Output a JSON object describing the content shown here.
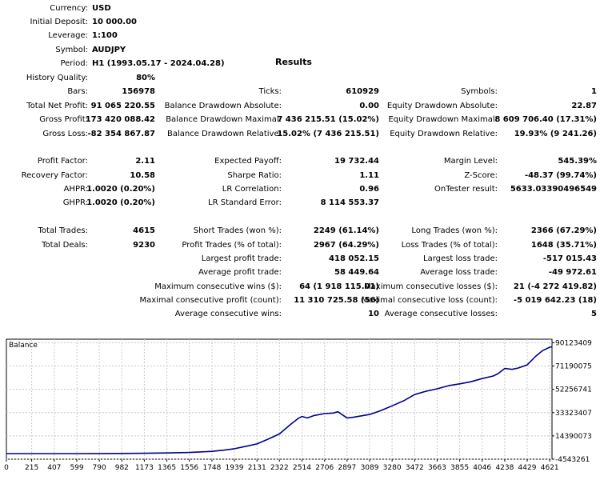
{
  "header": {
    "title": "Results",
    "fields": [
      {
        "label": "Currency:",
        "value": "USD"
      },
      {
        "label": "Initial Deposit:",
        "value": "10 000.00"
      },
      {
        "label": "Leverage:",
        "value": "1:100"
      },
      {
        "label": "Symbol:",
        "value": "AUDJPY"
      },
      {
        "label": "Period:",
        "value": "H1 (1993.05.17 - 2024.04.28)"
      }
    ]
  },
  "rows": [
    {
      "cells": [
        {
          "label": "History Quality:",
          "value": "80%"
        }
      ]
    },
    {
      "cells": [
        {
          "label": "Bars:",
          "value": "156978"
        },
        {
          "label": "Ticks:",
          "value": "610929"
        },
        {
          "label": "Symbols:",
          "value": "1"
        }
      ]
    },
    {
      "cells": [
        {
          "label": "Total Net Profit:",
          "value": "91 065 220.55"
        },
        {
          "label": "Balance Drawdown Absolute:",
          "value": "0.00"
        },
        {
          "label": "Equity Drawdown Absolute:",
          "value": "22.87"
        }
      ]
    },
    {
      "cells": [
        {
          "label": "Gross Profit:",
          "value": "173 420 088.42"
        },
        {
          "label": "Balance Drawdown Maximal:",
          "value": "7 436 215.51 (15.02%)"
        },
        {
          "label": "Equity Drawdown Maximal:",
          "value": "8 609 706.40 (17.31%)"
        }
      ]
    },
    {
      "cells": [
        {
          "label": "Gross Loss:",
          "value": "-82 354 867.87"
        },
        {
          "label": "Balance Drawdown Relative:",
          "value": "15.02% (7 436 215.51)"
        },
        {
          "label": "Equity Drawdown Relative:",
          "value": "19.93% (9 241.26)"
        }
      ]
    },
    {
      "cells": []
    },
    {
      "cells": [
        {
          "label": "Profit Factor:",
          "value": "2.11"
        },
        {
          "label": "Expected Payoff:",
          "value": "19 732.44"
        },
        {
          "label": "Margin Level:",
          "value": "545.39%"
        }
      ]
    },
    {
      "cells": [
        {
          "label": "Recovery Factor:",
          "value": "10.58"
        },
        {
          "label": "Sharpe Ratio:",
          "value": "1.11"
        },
        {
          "label": "Z-Score:",
          "value": "-48.37 (99.74%)"
        }
      ]
    },
    {
      "cells": [
        {
          "label": "AHPR:",
          "value": "1.0020 (0.20%)"
        },
        {
          "label": "LR Correlation:",
          "value": "0.96"
        },
        {
          "label": "OnTester result:",
          "value": "5633.03390496549"
        }
      ]
    },
    {
      "cells": [
        {
          "label": "GHPR:",
          "value": "1.0020 (0.20%)"
        },
        {
          "label": "LR Standard Error:",
          "value": "8 114 553.37"
        }
      ]
    },
    {
      "cells": []
    },
    {
      "cells": [
        {
          "label": "Total Trades:",
          "value": "4615"
        },
        {
          "label": "Short Trades (won %):",
          "value": "2249 (61.14%)"
        },
        {
          "label": "Long Trades (won %):",
          "value": "2366 (67.29%)"
        }
      ]
    },
    {
      "cells": [
        {
          "label": "Total Deals:",
          "value": "9230"
        },
        {
          "label": "Profit Trades (% of total):",
          "value": "2967 (64.29%)"
        },
        {
          "label": "Loss Trades (% of total):",
          "value": "1648 (35.71%)"
        }
      ]
    },
    {
      "cells": [
        null,
        {
          "label": "Largest profit trade:",
          "value": "418 052.15"
        },
        {
          "label": "Largest loss trade:",
          "value": "-517 015.43"
        }
      ]
    },
    {
      "cells": [
        null,
        {
          "label": "Average profit trade:",
          "value": "58 449.64"
        },
        {
          "label": "Average loss trade:",
          "value": "-49 972.61"
        }
      ]
    },
    {
      "cells": [
        null,
        {
          "label": "Maximum consecutive wins ($):",
          "value": "64 (1 918 115.01)"
        },
        {
          "label": "Maximum consecutive losses ($):",
          "value": "21 (-4 272 419.82)"
        }
      ]
    },
    {
      "cells": [
        null,
        {
          "label": "Maximal consecutive profit (count):",
          "value": "11 310 725.58 (56)"
        },
        {
          "label": "Maximal consecutive loss (count):",
          "value": "-5 019 642.23 (18)"
        }
      ]
    },
    {
      "cells": [
        null,
        {
          "label": "Average consecutive wins:",
          "value": "10"
        },
        {
          "label": "Average consecutive losses:",
          "value": "5"
        }
      ]
    }
  ],
  "chart_data": {
    "type": "line",
    "title": "Balance",
    "xlabel": "",
    "ylabel": "",
    "x_ticks": [
      0,
      215,
      407,
      599,
      790,
      982,
      1173,
      1365,
      1556,
      1748,
      1939,
      2131,
      2322,
      2514,
      2706,
      2897,
      3089,
      3280,
      3472,
      3663,
      3855,
      4046,
      4238,
      4429,
      4621
    ],
    "y_ticks": [
      -4543261,
      14390073,
      33323407,
      52256741,
      71190075,
      90123409
    ],
    "y_tick_labels": [
      "-4543261",
      "14390073",
      "33323407",
      "52256741",
      "71190075",
      "90123409"
    ],
    "xlim": [
      0,
      4640
    ],
    "ylim": [
      -4543261,
      93000000
    ],
    "grid": true,
    "series": [
      {
        "color": "#00008b",
        "x": [
          0,
          215,
          407,
          599,
          790,
          982,
          1173,
          1365,
          1556,
          1748,
          1850,
          1939,
          2040,
          2131,
          2230,
          2322,
          2420,
          2480,
          2514,
          2560,
          2620,
          2706,
          2780,
          2820,
          2850,
          2897,
          2950,
          3089,
          3180,
          3280,
          3380,
          3472,
          3560,
          3663,
          3760,
          3855,
          3950,
          4046,
          4140,
          4180,
          4238,
          4300,
          4350,
          4429,
          4500,
          4560,
          4621,
          4640
        ],
        "y": [
          10000,
          10000,
          12000,
          30000,
          60000,
          120000,
          250000,
          500000,
          900000,
          1800000,
          2800000,
          4000000,
          6000000,
          7900000,
          12000000,
          16000000,
          24000000,
          28500000,
          30200000,
          29000000,
          31000000,
          32500000,
          33000000,
          34000000,
          32000000,
          29000000,
          29500000,
          31800000,
          34800000,
          38800000,
          43000000,
          48000000,
          50500000,
          52700000,
          55200000,
          56700000,
          58400000,
          61000000,
          63100000,
          65000000,
          69200000,
          68500000,
          69500000,
          72100000,
          79000000,
          83700000,
          86500000,
          86800000
        ]
      }
    ]
  }
}
